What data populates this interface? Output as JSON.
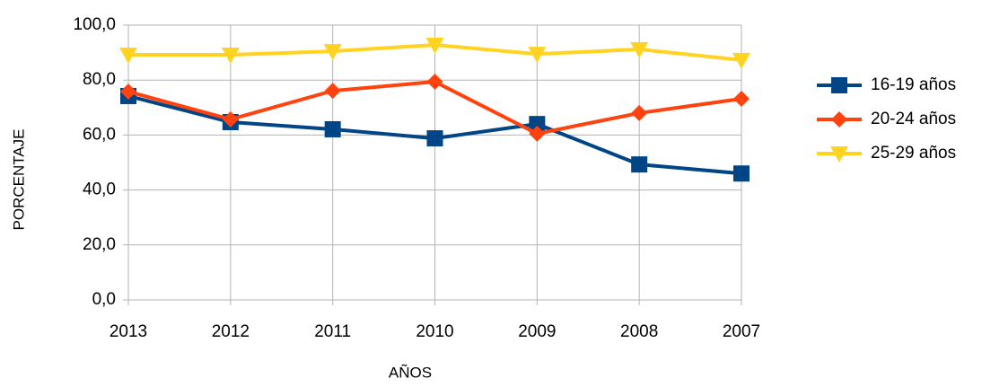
{
  "chart_data": {
    "type": "line",
    "y_label": "PORCENTAJE",
    "x_label": "AÑOS",
    "categories": [
      "2013",
      "2012",
      "2011",
      "2010",
      "2009",
      "2008",
      "2007"
    ],
    "series": [
      {
        "name": "16-19 años",
        "color": "#004586",
        "marker": "square",
        "values": [
          74.2,
          64.7,
          62.1,
          58.8,
          64.0,
          49.3,
          46.0
        ]
      },
      {
        "name": "20-24 años",
        "color": "#ff420e",
        "marker": "diamond",
        "values": [
          75.8,
          65.7,
          76.1,
          79.4,
          60.5,
          68.0,
          73.2
        ]
      },
      {
        "name": "25-29 años",
        "color": "#ffd320",
        "marker": "triangle-down",
        "values": [
          89.2,
          89.2,
          90.5,
          92.8,
          89.5,
          91.2,
          87.3
        ]
      }
    ],
    "ylim": [
      0,
      100
    ],
    "yticks": [
      {
        "value": 0,
        "label": "0,0"
      },
      {
        "value": 20,
        "label": "20,0"
      },
      {
        "value": 40,
        "label": "40,0"
      },
      {
        "value": 60,
        "label": "60,0"
      },
      {
        "value": 80,
        "label": "80,0"
      },
      {
        "value": 100,
        "label": "100,0"
      }
    ],
    "grid": true,
    "legend": "right"
  }
}
